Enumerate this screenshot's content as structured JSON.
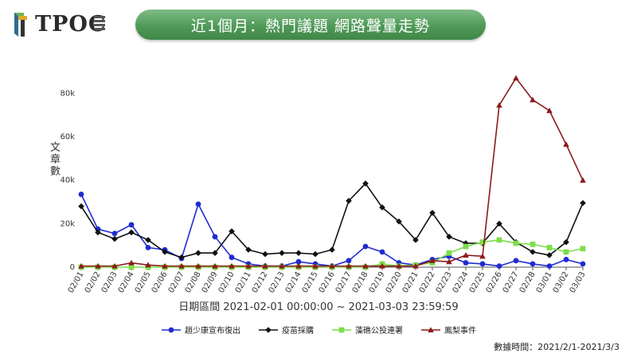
{
  "header": {
    "logo_text": "TPOC",
    "title": "近1個月：熱門議題 網路聲量走勢"
  },
  "footer": {
    "data_time": "數據時間：2021/2/1-2021/3/3"
  },
  "colors": {
    "title_bg": "#4f9a58",
    "series_1": "#1f2bd1",
    "series_2": "#111111",
    "series_3": "#7ddd4a",
    "series_4": "#8b1a1a"
  },
  "chart_data": {
    "type": "line",
    "xlabel": "日期區間 2021-02-01 00:00:00 ~ 2021-03-03 23:59:59",
    "ylabel": "文章數",
    "ylim": [
      0,
      90000
    ],
    "yticks": [
      0,
      20000,
      40000,
      60000,
      80000
    ],
    "ytick_labels": [
      "0",
      "20k",
      "40k",
      "60k",
      "80k"
    ],
    "grid": false,
    "legend_position": "bottom",
    "x": [
      "02/01",
      "02/02",
      "02/03",
      "02/04",
      "02/05",
      "02/06",
      "02/07",
      "02/08",
      "02/09",
      "02/10",
      "02/11",
      "02/12",
      "02/13",
      "02/14",
      "02/15",
      "02/16",
      "02/17",
      "02/18",
      "02/19",
      "02/20",
      "02/21",
      "02/22",
      "02/23",
      "02/24",
      "02/25",
      "02/26",
      "02/27",
      "02/28",
      "03/01",
      "03/02",
      "03/03"
    ],
    "series": [
      {
        "name": "趙少康宣布復出",
        "color": "#1f2bd1",
        "marker": "circle",
        "values": [
          33500,
          17500,
          15500,
          19500,
          9000,
          8000,
          4000,
          29000,
          14000,
          4500,
          1500,
          500,
          500,
          2500,
          1500,
          500,
          3000,
          9500,
          7000,
          2000,
          1000,
          3500,
          5000,
          2000,
          1500,
          500,
          3000,
          1500,
          500,
          3500,
          1500
        ]
      },
      {
        "name": "疫苗採購",
        "color": "#111111",
        "marker": "diamond",
        "values": [
          28000,
          16000,
          13000,
          16000,
          12500,
          7000,
          4500,
          6500,
          6500,
          16500,
          8000,
          6000,
          6500,
          6500,
          6000,
          8000,
          30500,
          38500,
          27500,
          21000,
          12500,
          25000,
          14000,
          11000,
          11000,
          20000,
          11500,
          7000,
          5500,
          11500,
          29500
        ]
      },
      {
        "name": "藻礁公投連署",
        "color": "#7ddd4a",
        "marker": "square",
        "values": [
          0,
          0,
          0,
          0,
          0,
          0,
          0,
          0,
          0,
          0,
          0,
          0,
          0,
          0,
          0,
          0,
          0,
          0,
          1500,
          500,
          1000,
          2000,
          6500,
          9500,
          11500,
          12500,
          11000,
          10500,
          9000,
          7000,
          8500
        ]
      },
      {
        "name": "鳳梨事件",
        "color": "#8b1a1a",
        "marker": "triangle",
        "values": [
          500,
          500,
          500,
          2000,
          1000,
          500,
          500,
          500,
          500,
          500,
          500,
          500,
          500,
          500,
          500,
          500,
          500,
          500,
          500,
          500,
          500,
          3000,
          2500,
          5500,
          5000,
          74500,
          87000,
          77000,
          72000,
          56500,
          40000
        ]
      }
    ]
  }
}
